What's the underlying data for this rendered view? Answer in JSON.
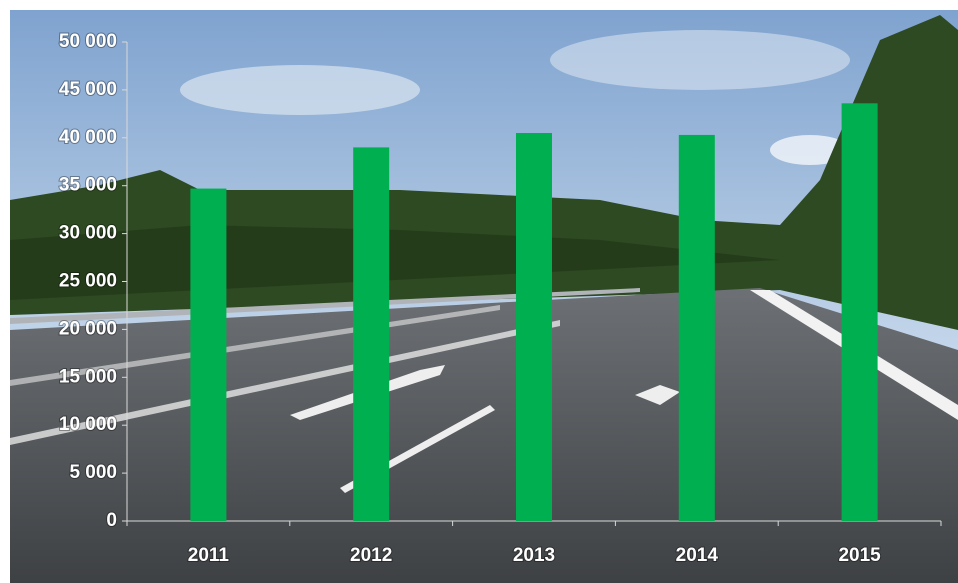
{
  "chart_data": {
    "type": "bar",
    "categories": [
      "2011",
      "2012",
      "2013",
      "2014",
      "2015"
    ],
    "values": [
      34700,
      39000,
      40500,
      40300,
      43600
    ],
    "color": "#00b050",
    "ylim": [
      0,
      50000
    ],
    "yticks": [
      {
        "value": 0,
        "label": "0"
      },
      {
        "value": 5000,
        "label": "5 000"
      },
      {
        "value": 10000,
        "label": "10 000"
      },
      {
        "value": 15000,
        "label": "15 000"
      },
      {
        "value": 20000,
        "label": "20 000"
      },
      {
        "value": 25000,
        "label": "25 000"
      },
      {
        "value": 30000,
        "label": "30 000"
      },
      {
        "value": 35000,
        "label": "35 000"
      },
      {
        "value": 40000,
        "label": "40 000"
      },
      {
        "value": 45000,
        "label": "45 000"
      },
      {
        "value": 50000,
        "label": "50 000"
      }
    ]
  }
}
